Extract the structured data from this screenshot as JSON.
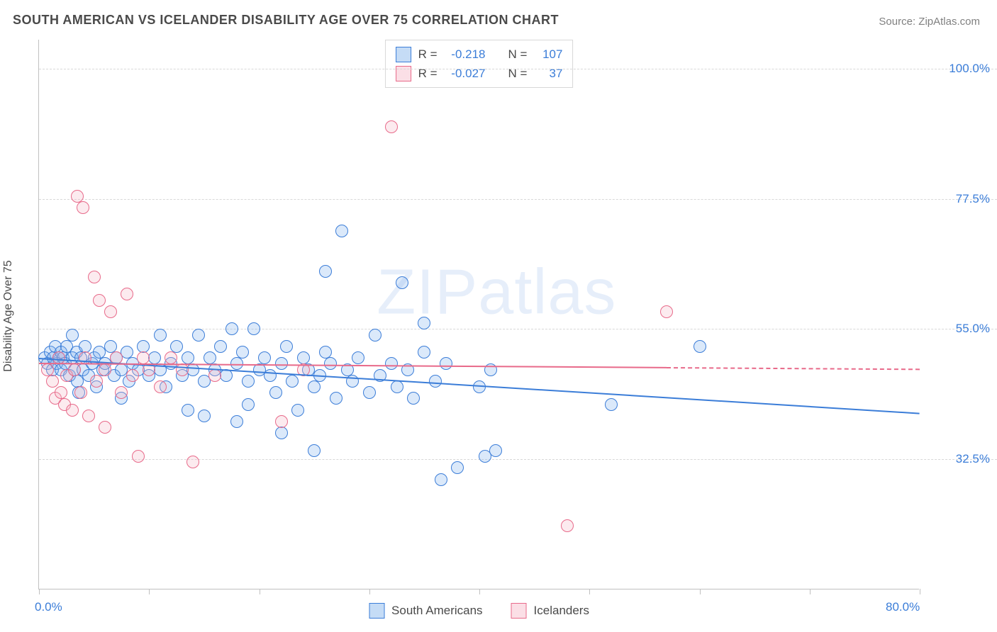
{
  "title": "SOUTH AMERICAN VS ICELANDER DISABILITY AGE OVER 75 CORRELATION CHART",
  "source_prefix": "Source: ",
  "source_name": "ZipAtlas.com",
  "y_axis_label": "Disability Age Over 75",
  "watermark": "ZIPatlas",
  "chart": {
    "type": "scatter",
    "xlim": [
      0,
      80
    ],
    "ylim": [
      10,
      105
    ],
    "x_ticks": [
      0,
      10,
      20,
      30,
      40,
      50,
      60,
      70,
      80
    ],
    "x_tick_labels": {
      "0": "0.0%",
      "80": "80.0%"
    },
    "y_ticks": [
      32.5,
      55.0,
      77.5,
      100.0
    ],
    "y_tick_labels": [
      "32.5%",
      "55.0%",
      "77.5%",
      "100.0%"
    ],
    "grid_color": "#d8d8d8",
    "axis_color": "#c0c0c0",
    "background_color": "#ffffff",
    "tick_label_color": "#3b7dd8",
    "title_color": "#4a4a4a",
    "title_fontsize": 18,
    "label_fontsize": 16,
    "tick_fontsize": 17,
    "marker_radius": 9,
    "marker_stroke_width": 1.5,
    "marker_fill_opacity": 0.28,
    "trend_line_width": 2,
    "series": [
      {
        "name": "South Americans",
        "color_fill": "#7eb1ec",
        "color_stroke": "#3b7dd8",
        "R": "-0.218",
        "N": "107",
        "trend": {
          "x1": 0,
          "y1": 50.0,
          "x2": 80,
          "y2": 40.5,
          "solid_until_x": 80
        },
        "points": [
          [
            0.5,
            50
          ],
          [
            0.8,
            49
          ],
          [
            1.0,
            51
          ],
          [
            1.2,
            48
          ],
          [
            1.3,
            50
          ],
          [
            1.5,
            52
          ],
          [
            1.6,
            49
          ],
          [
            1.8,
            50
          ],
          [
            2.0,
            48
          ],
          [
            2.0,
            51
          ],
          [
            2.2,
            50
          ],
          [
            2.4,
            49
          ],
          [
            2.5,
            52
          ],
          [
            2.8,
            47
          ],
          [
            3.0,
            50
          ],
          [
            3.0,
            54
          ],
          [
            3.2,
            48
          ],
          [
            3.4,
            51
          ],
          [
            3.5,
            46
          ],
          [
            3.6,
            44
          ],
          [
            3.8,
            50
          ],
          [
            4.0,
            48
          ],
          [
            4.2,
            52
          ],
          [
            4.5,
            47
          ],
          [
            4.8,
            49
          ],
          [
            5.0,
            50
          ],
          [
            5.2,
            45
          ],
          [
            5.5,
            51
          ],
          [
            5.8,
            48
          ],
          [
            6.0,
            49
          ],
          [
            6.5,
            52
          ],
          [
            6.8,
            47
          ],
          [
            7.0,
            50
          ],
          [
            7.5,
            48
          ],
          [
            7.5,
            43
          ],
          [
            8.0,
            51
          ],
          [
            8.2,
            46
          ],
          [
            8.5,
            49
          ],
          [
            9.0,
            48
          ],
          [
            9.5,
            52
          ],
          [
            10.0,
            47
          ],
          [
            10.5,
            50
          ],
          [
            11.0,
            48
          ],
          [
            11.0,
            54
          ],
          [
            11.5,
            45
          ],
          [
            12.0,
            49
          ],
          [
            12.5,
            52
          ],
          [
            13.0,
            47
          ],
          [
            13.5,
            50
          ],
          [
            13.5,
            41
          ],
          [
            14.0,
            48
          ],
          [
            14.5,
            54
          ],
          [
            15.0,
            46
          ],
          [
            15.0,
            40
          ],
          [
            15.5,
            50
          ],
          [
            16.0,
            48
          ],
          [
            16.5,
            52
          ],
          [
            17.0,
            47
          ],
          [
            17.5,
            55
          ],
          [
            18.0,
            49
          ],
          [
            18.0,
            39
          ],
          [
            18.5,
            51
          ],
          [
            19.0,
            46
          ],
          [
            19.0,
            42
          ],
          [
            19.5,
            55
          ],
          [
            20.0,
            48
          ],
          [
            20.5,
            50
          ],
          [
            21.0,
            47
          ],
          [
            21.5,
            44
          ],
          [
            22.0,
            49
          ],
          [
            22.0,
            37
          ],
          [
            22.5,
            52
          ],
          [
            23.0,
            46
          ],
          [
            23.5,
            41
          ],
          [
            24.0,
            50
          ],
          [
            24.5,
            48
          ],
          [
            25.0,
            34
          ],
          [
            25.0,
            45
          ],
          [
            25.5,
            47
          ],
          [
            26.0,
            51
          ],
          [
            26.0,
            65
          ],
          [
            26.5,
            49
          ],
          [
            27.0,
            43
          ],
          [
            27.5,
            72
          ],
          [
            28.0,
            48
          ],
          [
            28.5,
            46
          ],
          [
            29.0,
            50
          ],
          [
            30.0,
            44
          ],
          [
            30.5,
            54
          ],
          [
            31.0,
            47
          ],
          [
            32.0,
            49
          ],
          [
            32.5,
            45
          ],
          [
            33.0,
            63
          ],
          [
            33.5,
            48
          ],
          [
            34.0,
            43
          ],
          [
            35.0,
            51
          ],
          [
            35.0,
            56
          ],
          [
            36.0,
            46
          ],
          [
            36.5,
            29
          ],
          [
            37.0,
            49
          ],
          [
            38.0,
            31
          ],
          [
            40.0,
            45
          ],
          [
            40.5,
            33
          ],
          [
            41.0,
            48
          ],
          [
            41.5,
            34
          ],
          [
            52.0,
            42
          ],
          [
            60.0,
            52
          ]
        ]
      },
      {
        "name": "Icelanders",
        "color_fill": "#f6b8c7",
        "color_stroke": "#e86a8a",
        "R": "-0.027",
        "N": "37",
        "trend": {
          "x1": 0,
          "y1": 49.2,
          "x2": 80,
          "y2": 48.2,
          "solid_until_x": 57
        },
        "points": [
          [
            0.8,
            48
          ],
          [
            1.2,
            46
          ],
          [
            1.5,
            43
          ],
          [
            1.8,
            50
          ],
          [
            2.0,
            44
          ],
          [
            2.3,
            42
          ],
          [
            2.5,
            47
          ],
          [
            3.0,
            41
          ],
          [
            3.2,
            48
          ],
          [
            3.5,
            78
          ],
          [
            3.8,
            44
          ],
          [
            4.0,
            76
          ],
          [
            4.2,
            50
          ],
          [
            4.5,
            40
          ],
          [
            5.0,
            64
          ],
          [
            5.2,
            46
          ],
          [
            5.5,
            60
          ],
          [
            6.0,
            48
          ],
          [
            6.0,
            38
          ],
          [
            6.5,
            58
          ],
          [
            7.0,
            50
          ],
          [
            7.5,
            44
          ],
          [
            8.0,
            61
          ],
          [
            8.5,
            47
          ],
          [
            9.0,
            33
          ],
          [
            9.5,
            50
          ],
          [
            10.0,
            48
          ],
          [
            11.0,
            45
          ],
          [
            12.0,
            50
          ],
          [
            13.0,
            48
          ],
          [
            14.0,
            32
          ],
          [
            16.0,
            47
          ],
          [
            22.0,
            39
          ],
          [
            24.0,
            48
          ],
          [
            32.0,
            90
          ],
          [
            48.0,
            21
          ],
          [
            57.0,
            58
          ]
        ]
      }
    ],
    "legend_top": {
      "rows": [
        {
          "series_idx": 0,
          "r_label": "R =",
          "r_val": "-0.218",
          "n_label": "N =",
          "n_val": "107"
        },
        {
          "series_idx": 1,
          "r_label": "R =",
          "r_val": "-0.027",
          "n_label": "N =",
          "n_val": "37"
        }
      ]
    },
    "legend_bottom": [
      {
        "series_idx": 0,
        "label": "South Americans"
      },
      {
        "series_idx": 1,
        "label": "Icelanders"
      }
    ]
  }
}
